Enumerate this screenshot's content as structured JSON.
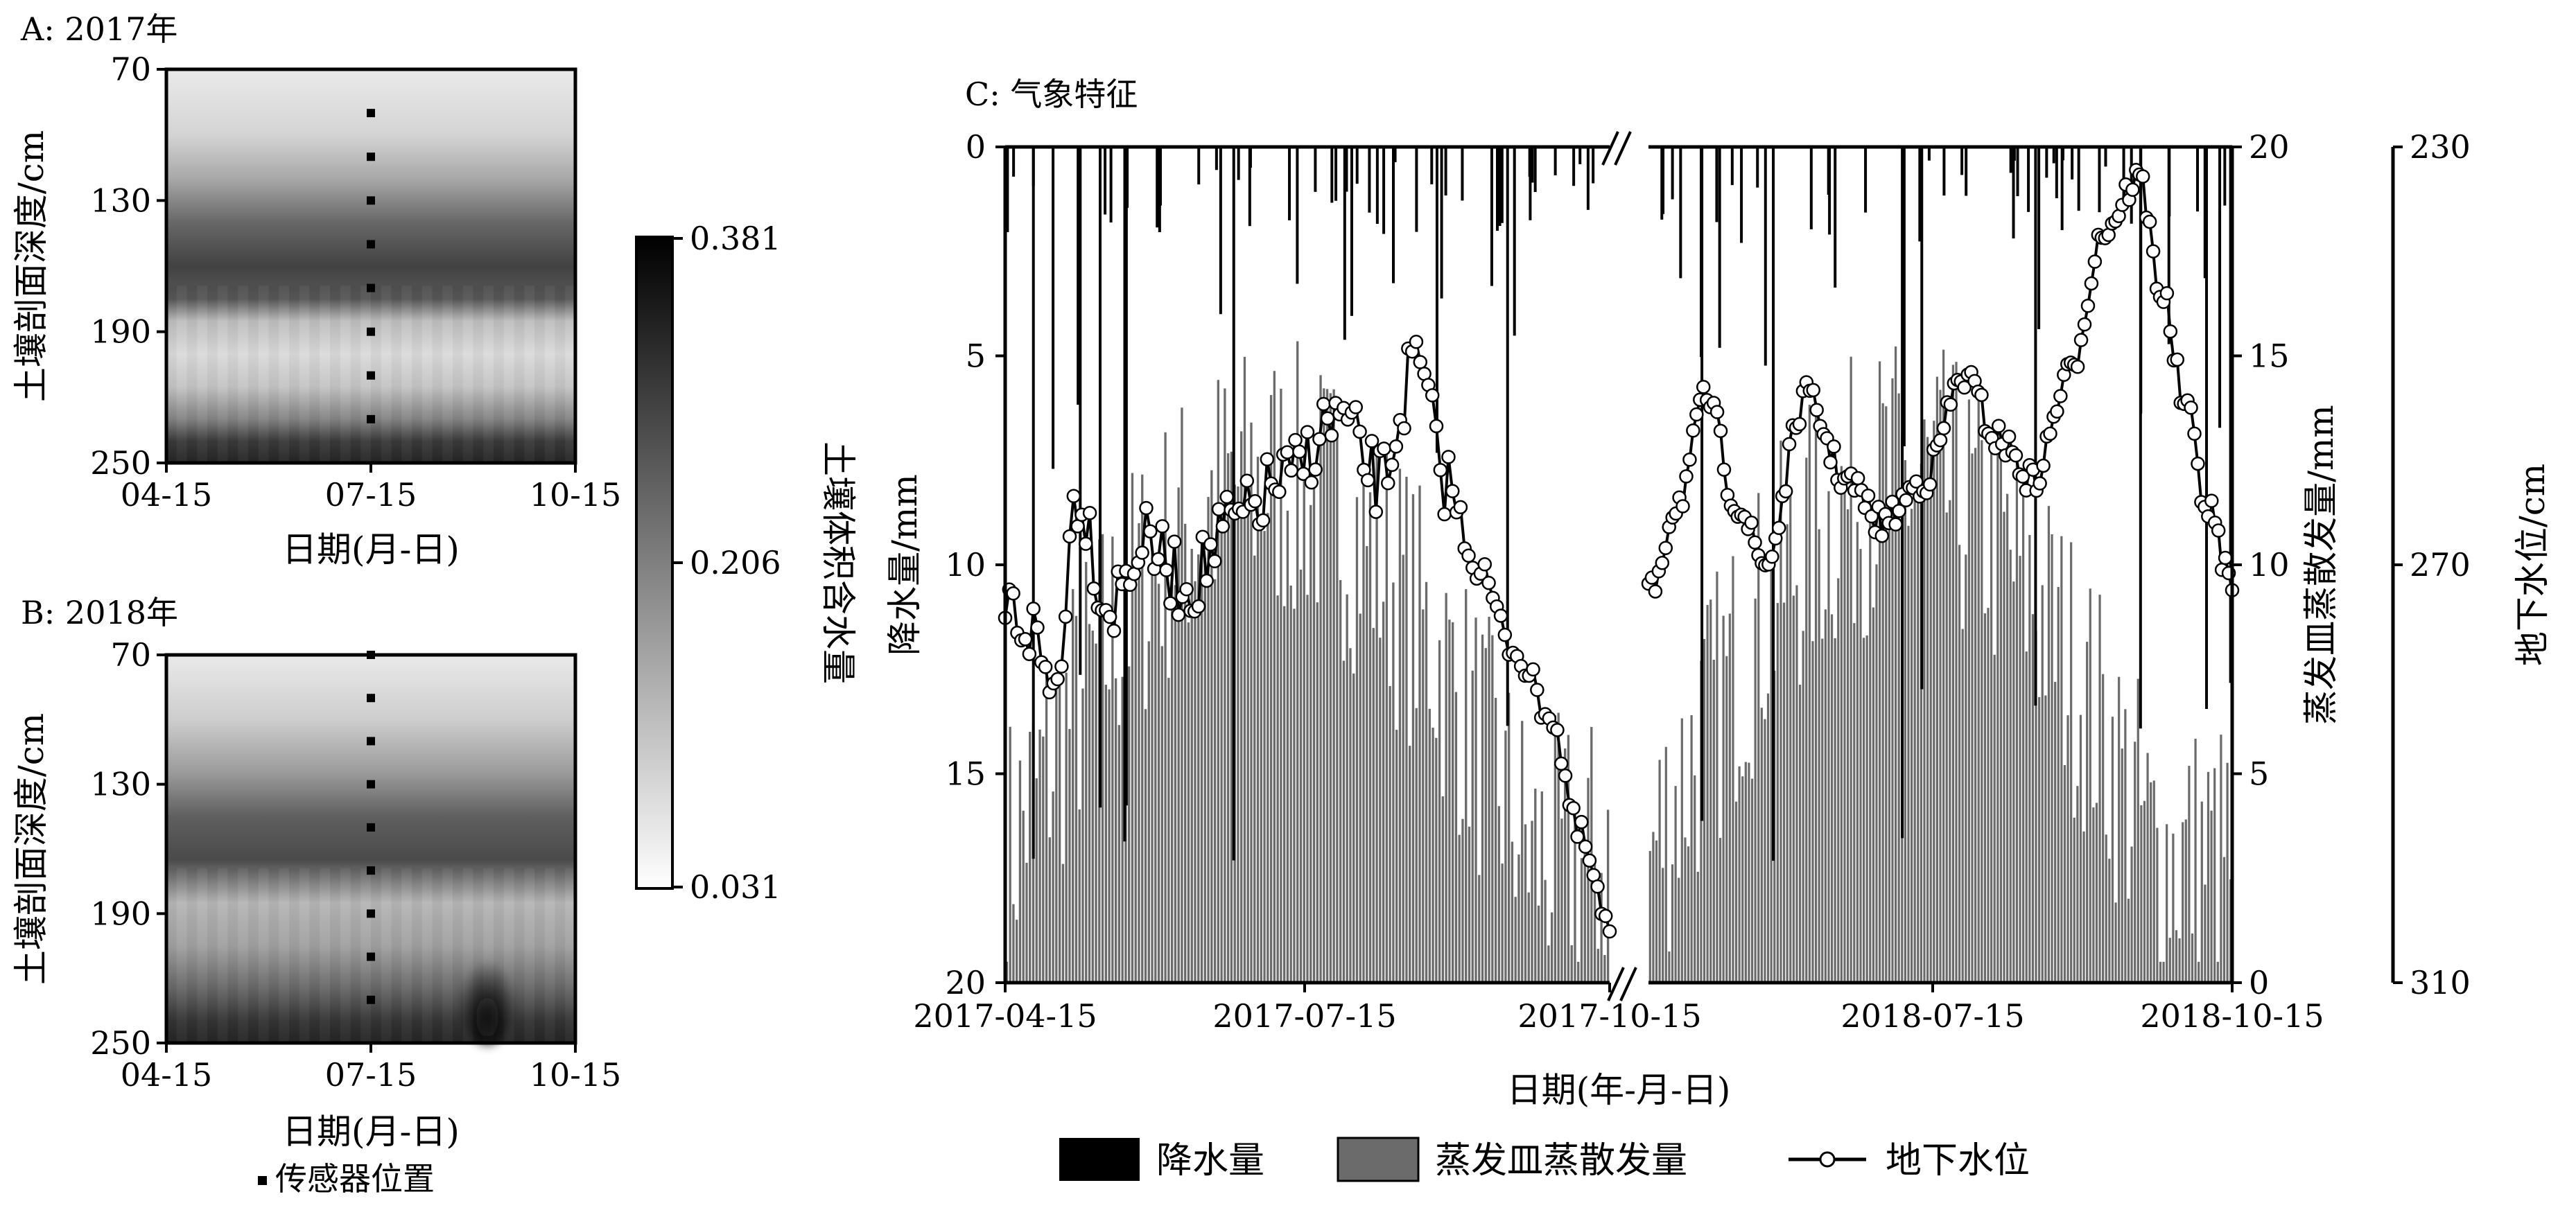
{
  "chart_data": [
    {
      "id": "A",
      "type": "heatmap",
      "panel_label": "A: 2017年",
      "xlabel": "日期(月-日)",
      "ylabel": "土壤剖面深度/cm",
      "x_ticks": [
        "04-15",
        "07-15",
        "10-15"
      ],
      "y_ticks": [
        "70",
        "130",
        "190",
        "250"
      ],
      "ylim": [
        70,
        250
      ],
      "sensor_date": "07-15",
      "sensor_depths_cm": [
        90,
        110,
        130,
        150,
        170,
        190,
        210,
        230
      ],
      "depth_profile": [
        {
          "depth": 70,
          "value": 0.06
        },
        {
          "depth": 100,
          "value": 0.09
        },
        {
          "depth": 120,
          "value": 0.15
        },
        {
          "depth": 140,
          "value": 0.24
        },
        {
          "depth": 160,
          "value": 0.29
        },
        {
          "depth": 175,
          "value": 0.26
        },
        {
          "depth": 185,
          "value": 0.12
        },
        {
          "depth": 200,
          "value": 0.08
        },
        {
          "depth": 215,
          "value": 0.11
        },
        {
          "depth": 230,
          "value": 0.2
        },
        {
          "depth": 240,
          "value": 0.3
        },
        {
          "depth": 250,
          "value": 0.33
        }
      ]
    },
    {
      "id": "B",
      "type": "heatmap",
      "panel_label": "B: 2018年",
      "xlabel": "日期(月-日)",
      "ylabel": "土壤剖面深度/cm",
      "x_ticks": [
        "04-15",
        "07-15",
        "10-15"
      ],
      "y_ticks": [
        "70",
        "130",
        "190",
        "250"
      ],
      "ylim": [
        70,
        250
      ],
      "sensor_date": "07-15",
      "sensor_depths_cm": [
        70,
        90,
        110,
        130,
        150,
        170,
        190,
        210,
        230
      ],
      "depth_profile": [
        {
          "depth": 70,
          "value": 0.06
        },
        {
          "depth": 100,
          "value": 0.1
        },
        {
          "depth": 125,
          "value": 0.17
        },
        {
          "depth": 145,
          "value": 0.25
        },
        {
          "depth": 165,
          "value": 0.28
        },
        {
          "depth": 185,
          "value": 0.13
        },
        {
          "depth": 205,
          "value": 0.16
        },
        {
          "depth": 225,
          "value": 0.24
        },
        {
          "depth": 240,
          "value": 0.31
        },
        {
          "depth": 250,
          "value": 0.33
        }
      ],
      "wet_patch": {
        "date": "09-10",
        "depth_range": [
          212,
          250
        ],
        "value": 0.36
      }
    },
    {
      "id": "colorbar",
      "type": "colorbar",
      "label": "土壤体积含水量",
      "ticks": [
        "0.381",
        "0.206",
        "0.031"
      ],
      "range": [
        0.031,
        0.381
      ]
    },
    {
      "id": "C",
      "type": "bar+line",
      "panel_label": "C: 气象特征",
      "xlabel": "日期(年-月-日)",
      "x_ticks": [
        "2017-04-15",
        "2017-07-15",
        "2017-10-15",
        "2018-07-15",
        "2018-10-15"
      ],
      "x_axis_break": "2017-10-15",
      "y_left": {
        "label": "降水量/mm",
        "ticks": [
          "0",
          "5",
          "10",
          "15",
          "20"
        ],
        "range": [
          0,
          20
        ],
        "inverted": true
      },
      "y_right1": {
        "label": "蒸发皿蒸散发量/mm",
        "ticks": [
          "0",
          "5",
          "10",
          "15",
          "20"
        ],
        "range": [
          0,
          20
        ]
      },
      "y_right2": {
        "label": "地下水位/cm",
        "ticks": [
          "230",
          "270",
          "310"
        ],
        "range": [
          230,
          310
        ]
      },
      "series": [
        {
          "name": "降水量",
          "kind": "bar",
          "color": "#000000",
          "note": "daily precipitation drawn downward from top"
        },
        {
          "name": "蒸发皿蒸散发量",
          "kind": "bar",
          "color": "#6b6b6b",
          "note": "daily pan evaporation, values mostly 3-15 mm"
        },
        {
          "name": "地下水位",
          "kind": "line",
          "color": "#000000",
          "marker": "open-circle"
        }
      ],
      "groundwater_keypoints": [
        {
          "seg": 1,
          "t": 0.0,
          "v": 274
        },
        {
          "seg": 1,
          "t": 0.04,
          "v": 276
        },
        {
          "seg": 1,
          "t": 0.08,
          "v": 282
        },
        {
          "seg": 1,
          "t": 0.12,
          "v": 263
        },
        {
          "seg": 1,
          "t": 0.17,
          "v": 274
        },
        {
          "seg": 1,
          "t": 0.23,
          "v": 268
        },
        {
          "seg": 1,
          "t": 0.3,
          "v": 272
        },
        {
          "seg": 1,
          "t": 0.38,
          "v": 266
        },
        {
          "seg": 1,
          "t": 0.46,
          "v": 262
        },
        {
          "seg": 1,
          "t": 0.55,
          "v": 256
        },
        {
          "seg": 1,
          "t": 0.62,
          "v": 262
        },
        {
          "seg": 1,
          "t": 0.68,
          "v": 251
        },
        {
          "seg": 1,
          "t": 0.73,
          "v": 262
        },
        {
          "seg": 1,
          "t": 0.78,
          "v": 270
        },
        {
          "seg": 1,
          "t": 0.84,
          "v": 278
        },
        {
          "seg": 1,
          "t": 0.9,
          "v": 284
        },
        {
          "seg": 1,
          "t": 0.95,
          "v": 296
        },
        {
          "seg": 1,
          "t": 1.0,
          "v": 305
        },
        {
          "seg": 2,
          "t": 0.0,
          "v": 273
        },
        {
          "seg": 2,
          "t": 0.05,
          "v": 264
        },
        {
          "seg": 2,
          "t": 0.1,
          "v": 254
        },
        {
          "seg": 2,
          "t": 0.15,
          "v": 264
        },
        {
          "seg": 2,
          "t": 0.2,
          "v": 270
        },
        {
          "seg": 2,
          "t": 0.27,
          "v": 254
        },
        {
          "seg": 2,
          "t": 0.34,
          "v": 262
        },
        {
          "seg": 2,
          "t": 0.4,
          "v": 266
        },
        {
          "seg": 2,
          "t": 0.47,
          "v": 262
        },
        {
          "seg": 2,
          "t": 0.54,
          "v": 252
        },
        {
          "seg": 2,
          "t": 0.6,
          "v": 258
        },
        {
          "seg": 2,
          "t": 0.66,
          "v": 262
        },
        {
          "seg": 2,
          "t": 0.72,
          "v": 252
        },
        {
          "seg": 2,
          "t": 0.78,
          "v": 238
        },
        {
          "seg": 2,
          "t": 0.84,
          "v": 233
        },
        {
          "seg": 2,
          "t": 0.88,
          "v": 244
        },
        {
          "seg": 2,
          "t": 0.92,
          "v": 255
        },
        {
          "seg": 2,
          "t": 0.96,
          "v": 265
        },
        {
          "seg": 2,
          "t": 1.0,
          "v": 272
        }
      ]
    }
  ],
  "legends": {
    "sensor": "传感器位置",
    "precip": "降水量",
    "evap": "蒸发皿蒸散发量",
    "gw": "地下水位"
  }
}
